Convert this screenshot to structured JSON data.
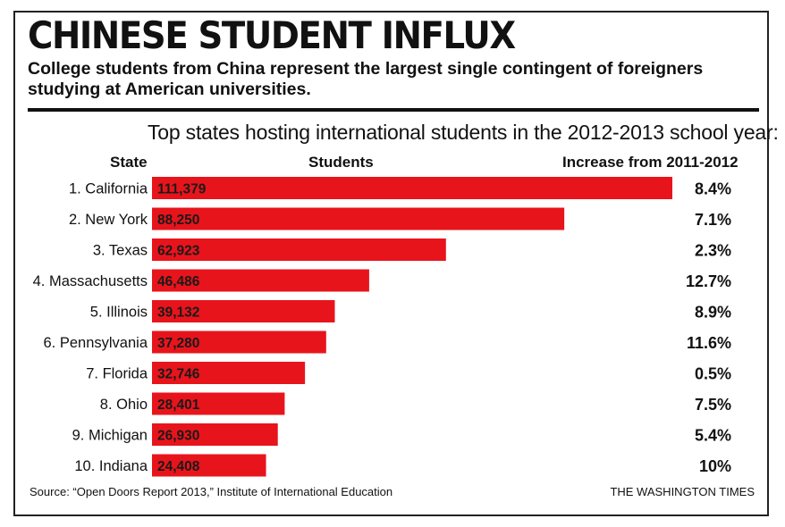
{
  "title": "CHINESE STUDENT INFLUX",
  "subtitle": "College students from China represent the largest single contingent of foreigners studying at American universities.",
  "chart_heading": "Top states hosting international students in the 2012-2013 school year:",
  "columns": {
    "state": "State",
    "students": "Students",
    "increase": "Increase from 2011-2012"
  },
  "source": "Source: “Open Doors Report 2013,” Institute of International Education",
  "credit": "THE WASHINGTON TIMES",
  "colors": {
    "bar": "#e8141c",
    "text": "#111111",
    "rule": "#111111"
  },
  "chart_data": {
    "type": "bar",
    "orientation": "horizontal",
    "categories": [
      "1. California",
      "2. New York",
      "3. Texas",
      "4. Massachusetts",
      "5. Illinois",
      "6. Pennsylvania",
      "7. Florida",
      "8. Ohio",
      "9. Michigan",
      "10. Indiana"
    ],
    "value_labels": [
      "111,379",
      "88,250",
      "62,923",
      "46,486",
      "39,132",
      "37,280",
      "32,746",
      "28,401",
      "26,930",
      "24,408"
    ],
    "values": [
      111379,
      88250,
      62923,
      46486,
      39132,
      37280,
      32746,
      28401,
      26930,
      24408
    ],
    "increase_labels": [
      "8.4%",
      "7.1%",
      "2.3%",
      "12.7%",
      "8.9%",
      "11.6%",
      "0.5%",
      "7.5%",
      "5.4%",
      "10%"
    ],
    "xlim": [
      0,
      111379
    ],
    "grid": false
  }
}
